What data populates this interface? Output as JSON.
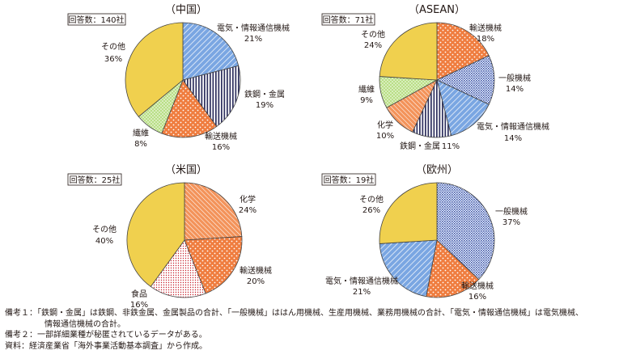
{
  "colors": {
    "electric": "#5b8fd6",
    "steel": "#2e2f5e",
    "transport": "#ee7a3c",
    "fiber": "#a7d572",
    "other": "#f0d04e",
    "general": "#3d55a8",
    "chemical": "#f08b4a",
    "food": "#c8202c",
    "outline": "#444444"
  },
  "chart_data": [
    {
      "type": "pie",
      "title": "（中国）",
      "respondents": "回答数：140社",
      "slices": [
        {
          "label": "電気・情報通信機械",
          "pct_text": "21%",
          "value": 21,
          "pattern": "electric"
        },
        {
          "label": "鉄鋼・金属",
          "pct_text": "19%",
          "value": 19,
          "pattern": "steel"
        },
        {
          "label": "輸送機械",
          "pct_text": "16%",
          "value": 16,
          "pattern": "transport"
        },
        {
          "label": "繊維",
          "pct_text": "8%",
          "value": 8,
          "pattern": "fiber"
        },
        {
          "label": "その他",
          "pct_text": "36%",
          "value": 36,
          "pattern": "other"
        }
      ]
    },
    {
      "type": "pie",
      "title": "（ASEAN）",
      "respondents": "回答数：71社",
      "slices": [
        {
          "label": "輸送機械",
          "pct_text": "18%",
          "value": 18,
          "pattern": "transport"
        },
        {
          "label": "一般機械",
          "pct_text": "14%",
          "value": 14,
          "pattern": "general"
        },
        {
          "label": "電気・情報通信機械",
          "pct_text": "14%",
          "value": 14,
          "pattern": "electric"
        },
        {
          "label": "鉄鋼・金属",
          "pct_text": "11%",
          "value": 11,
          "pattern": "steel"
        },
        {
          "label": "化学",
          "pct_text": "10%",
          "value": 10,
          "pattern": "chemical"
        },
        {
          "label": "繊維",
          "pct_text": "9%",
          "value": 9,
          "pattern": "fiber"
        },
        {
          "label": "その他",
          "pct_text": "24%",
          "value": 24,
          "pattern": "other"
        }
      ]
    },
    {
      "type": "pie",
      "title": "（米国）",
      "respondents": "回答数：25社",
      "slices": [
        {
          "label": "化学",
          "pct_text": "24%",
          "value": 24,
          "pattern": "chemical"
        },
        {
          "label": "輸送機械",
          "pct_text": "20%",
          "value": 20,
          "pattern": "transport"
        },
        {
          "label": "食品",
          "pct_text": "16%",
          "value": 16,
          "pattern": "food"
        },
        {
          "label": "その他",
          "pct_text": "40%",
          "value": 40,
          "pattern": "other"
        }
      ]
    },
    {
      "type": "pie",
      "title": "（欧州）",
      "respondents": "回答数：19社",
      "slices": [
        {
          "label": "一般機械",
          "pct_text": "37%",
          "value": 37,
          "pattern": "general"
        },
        {
          "label": "輸送機械",
          "pct_text": "16%",
          "value": 16,
          "pattern": "transport"
        },
        {
          "label": "電気・情報通信機械",
          "pct_text": "21%",
          "value": 21,
          "pattern": "electric"
        },
        {
          "label": "その他",
          "pct_text": "26%",
          "value": 26,
          "pattern": "other"
        }
      ]
    }
  ],
  "notes": {
    "note1_line1": "備考１：「鉄鋼・金属」は鉄鋼、非鉄金属、金属製品の合計、「一般機械」ははん用機械、生産用機械、業務用機械の合計、「電気・情報通信機械」は電気機械、",
    "note1_line2": "情報通信機械の合計。",
    "note2": "備考２：一部詳細業種が秘匿されているデータがある。",
    "source": "資料：経済産業省「海外事業活動基本調査」から作成。"
  }
}
